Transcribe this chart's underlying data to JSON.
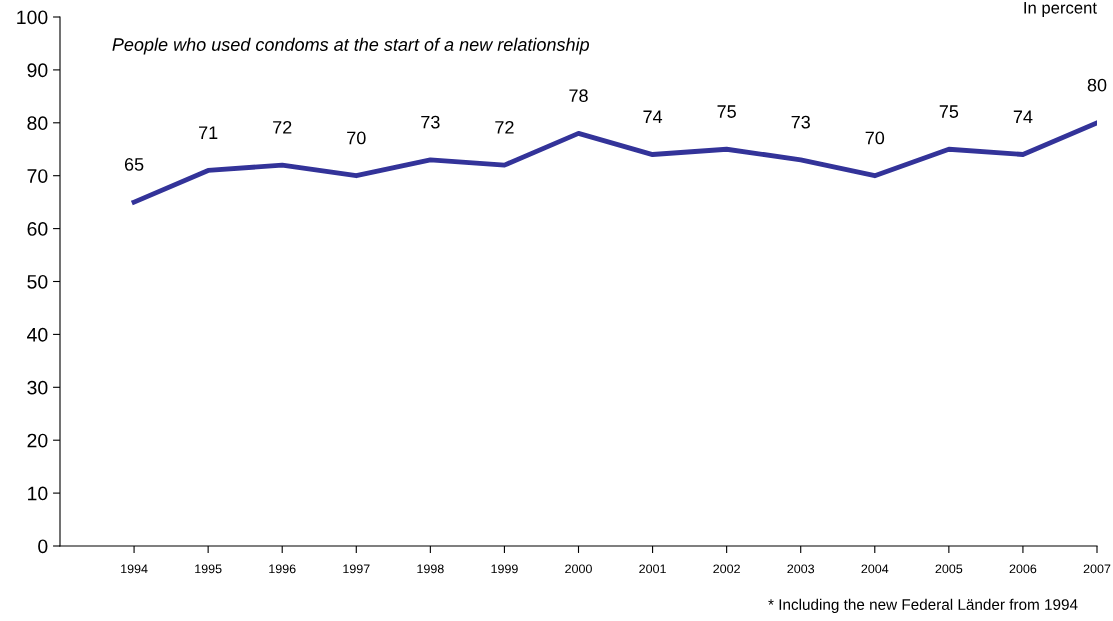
{
  "chart_data": {
    "type": "line",
    "subtitle": "People who used condoms at the start of a new relationship",
    "ylabel": "In percent",
    "x": [
      1994,
      1995,
      1996,
      1997,
      1998,
      1999,
      2000,
      2001,
      2002,
      2003,
      2004,
      2005,
      2006,
      2007
    ],
    "series": [
      {
        "color": "#333399",
        "values": [
          65,
          71,
          72,
          70,
          73,
          72,
          78,
          74,
          75,
          73,
          70,
          75,
          74,
          80
        ]
      }
    ],
    "xlim": [
      1993,
      2007
    ],
    "xticks": [
      1994,
      1995,
      1996,
      1997,
      1998,
      1999,
      2000,
      2001,
      2002,
      2003,
      2004,
      2005,
      2006,
      2007
    ],
    "ylim": [
      0,
      100
    ],
    "yticks": [
      0,
      10,
      20,
      30,
      40,
      50,
      60,
      70,
      80,
      90,
      100
    ],
    "data_labels": true,
    "grid": false,
    "legend": false,
    "marker": "none",
    "line_style": "solid",
    "annotations": [
      "* Including the new Federal Länder from 1994"
    ]
  }
}
